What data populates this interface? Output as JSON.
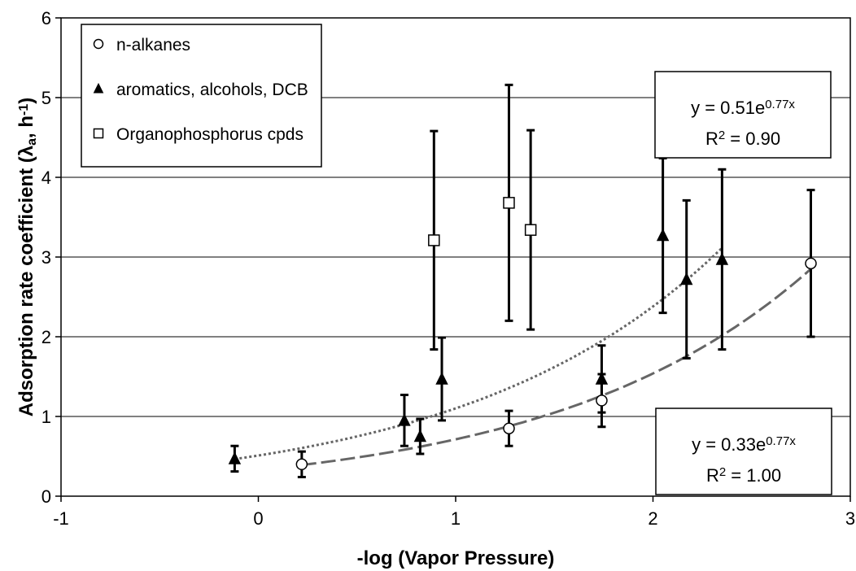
{
  "chart_data": {
    "type": "scatter",
    "xlabel": "-log (Vapor Pressure)",
    "ylabel": [
      "Adsorption rate coefficient (λ",
      "a",
      ", h",
      "-1",
      ")"
    ],
    "xlim": [
      -1,
      3
    ],
    "xticks": [
      -1,
      0,
      1,
      2,
      3
    ],
    "ylim": [
      0,
      6
    ],
    "yticks": [
      0,
      1,
      2,
      3,
      4,
      5,
      6
    ],
    "grid": true,
    "legend": "upper left",
    "series": [
      {
        "name": "n-alkanes",
        "marker": "circle",
        "color": "#000000",
        "fill": "#ffffff",
        "x": [
          0.22,
          1.27,
          1.74,
          2.8
        ],
        "values": [
          0.4,
          0.85,
          1.2,
          2.92
        ],
        "errors": [
          0.16,
          0.22,
          0.33,
          0.92
        ]
      },
      {
        "name": "aromatics, alcohols, DCB",
        "marker": "triangle",
        "color": "#000000",
        "fill": "#000000",
        "x": [
          -0.12,
          0.74,
          0.82,
          0.93,
          1.74,
          2.05,
          2.17,
          2.35
        ],
        "values": [
          0.47,
          0.95,
          0.75,
          1.47,
          1.47,
          3.27,
          2.72,
          2.97
        ],
        "errors": [
          0.16,
          0.32,
          0.22,
          0.52,
          0.42,
          0.97,
          0.99,
          1.13
        ]
      },
      {
        "name": "Organophosphorus cpds",
        "marker": "square",
        "color": "#000000",
        "fill": "#ffffff",
        "x": [
          0.89,
          1.27,
          1.38
        ],
        "values": [
          3.21,
          3.68,
          3.34
        ],
        "errors": [
          1.37,
          1.48,
          1.25
        ]
      }
    ],
    "trendlines": [
      {
        "series": 1,
        "a": 0.51,
        "b": 0.77,
        "style": "dotted",
        "color": "#666666",
        "equation": [
          "y = 0.51e",
          "0.77x"
        ],
        "r2": [
          "R",
          "2",
          " = 0.90"
        ]
      },
      {
        "series": 0,
        "a": 0.33,
        "b": 0.77,
        "style": "dashed",
        "color": "#666666",
        "equation": [
          "y = 0.33e",
          "0.77x"
        ],
        "r2": [
          "R",
          "2",
          " = 1.00"
        ]
      }
    ]
  }
}
